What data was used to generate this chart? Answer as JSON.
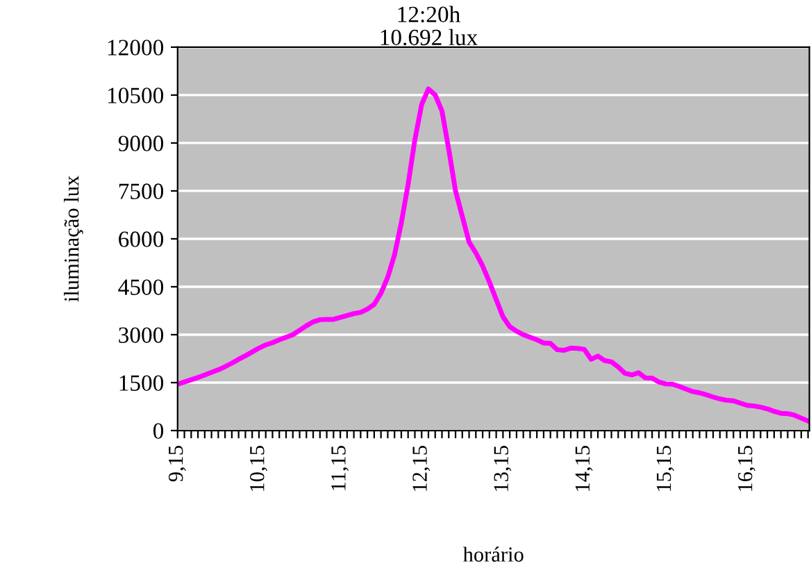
{
  "chart_data": {
    "type": "line",
    "xlabel": "horário",
    "ylabel": "iluminação lux",
    "annotations": [
      "12:20h",
      "10.692 lux"
    ],
    "categories": [
      "9,15",
      null,
      null,
      null,
      null,
      null,
      null,
      null,
      null,
      null,
      null,
      null,
      "10,15",
      null,
      null,
      null,
      null,
      null,
      null,
      null,
      null,
      null,
      null,
      null,
      "11,15",
      null,
      null,
      null,
      null,
      null,
      null,
      null,
      null,
      null,
      null,
      null,
      "12,15",
      null,
      null,
      null,
      null,
      null,
      null,
      null,
      null,
      null,
      null,
      null,
      "13,15",
      null,
      null,
      null,
      null,
      null,
      null,
      null,
      null,
      null,
      null,
      null,
      "14,15",
      null,
      null,
      null,
      null,
      null,
      null,
      null,
      null,
      null,
      null,
      null,
      "15,15",
      null,
      null,
      null,
      null,
      null,
      null,
      null,
      null,
      null,
      null,
      null,
      "16,15",
      null,
      null,
      null,
      null,
      null,
      null,
      null,
      null,
      null
    ],
    "series": [
      {
        "color": "#ff00ff",
        "values": [
          1450,
          1520,
          1590,
          1660,
          1740,
          1820,
          1900,
          2000,
          2110,
          2230,
          2340,
          2460,
          2580,
          2680,
          2750,
          2840,
          2920,
          3000,
          3140,
          3280,
          3400,
          3470,
          3480,
          3480,
          3540,
          3600,
          3660,
          3700,
          3800,
          3950,
          4300,
          4800,
          5500,
          6500,
          7700,
          9100,
          10200,
          10692,
          10500,
          10000,
          8800,
          7500,
          6700,
          5900,
          5560,
          5150,
          4650,
          4100,
          3560,
          3250,
          3110,
          3000,
          2920,
          2840,
          2740,
          2730,
          2530,
          2510,
          2580,
          2570,
          2540,
          2230,
          2330,
          2190,
          2150,
          1990,
          1790,
          1740,
          1810,
          1650,
          1640,
          1520,
          1460,
          1450,
          1380,
          1300,
          1220,
          1180,
          1120,
          1050,
          990,
          950,
          930,
          860,
          790,
          770,
          730,
          680,
          600,
          540,
          530,
          480,
          390,
          300
        ]
      }
    ],
    "ylim": [
      0,
      12000
    ],
    "yticks": [
      0,
      1500,
      3000,
      4500,
      6000,
      7500,
      9000,
      10500,
      12000
    ],
    "grid": "y",
    "legend": false,
    "marker": "none",
    "line_style": "solid"
  }
}
